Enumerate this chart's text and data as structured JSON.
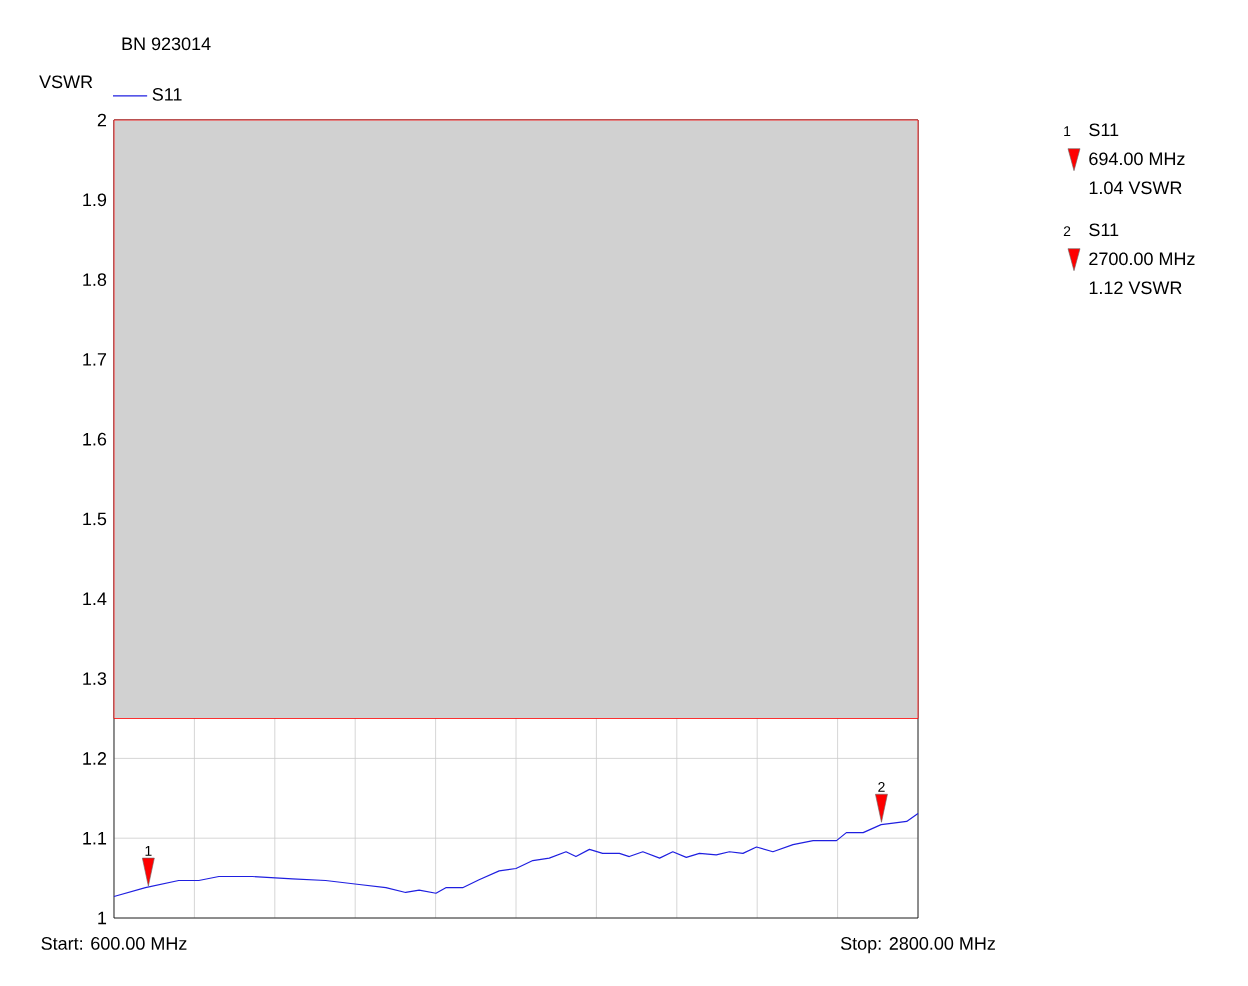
{
  "chart_data": {
    "type": "line",
    "title": "BN 923014",
    "ylabel": "VSWR",
    "x": [
      600,
      686,
      777,
      832,
      887,
      978,
      1088,
      1179,
      1271,
      1344,
      1398,
      1435,
      1481,
      1508,
      1554,
      1599,
      1654,
      1700,
      1746,
      1791,
      1837,
      1864,
      1901,
      1937,
      1983,
      2010,
      2047,
      2093,
      2129,
      2166,
      2202,
      2248,
      2284,
      2321,
      2358,
      2403,
      2458,
      2513,
      2577,
      2604,
      2650,
      2699,
      2732,
      2769,
      2800
    ],
    "series": [
      {
        "name": "S11",
        "color": "#1f1fe0",
        "values": [
          1.027,
          1.038,
          1.047,
          1.047,
          1.052,
          1.052,
          1.049,
          1.047,
          1.042,
          1.038,
          1.032,
          1.035,
          1.031,
          1.038,
          1.038,
          1.048,
          1.059,
          1.062,
          1.072,
          1.075,
          1.083,
          1.077,
          1.086,
          1.081,
          1.081,
          1.077,
          1.083,
          1.075,
          1.083,
          1.076,
          1.081,
          1.079,
          1.083,
          1.081,
          1.089,
          1.083,
          1.092,
          1.097,
          1.097,
          1.107,
          1.107,
          1.117,
          1.119,
          1.121,
          1.131
        ]
      }
    ],
    "xlim": [
      600,
      2800
    ],
    "ylim": [
      1,
      2
    ],
    "xticks": [
      {
        "value": 600,
        "label": "Start: 600.00 MHz"
      },
      {
        "value": 820,
        "label": null
      },
      {
        "value": 1040,
        "label": null
      },
      {
        "value": 1260,
        "label": null
      },
      {
        "value": 1480,
        "label": null
      },
      {
        "value": 1700,
        "label": null
      },
      {
        "value": 1920,
        "label": null
      },
      {
        "value": 2140,
        "label": null
      },
      {
        "value": 2360,
        "label": null
      },
      {
        "value": 2580,
        "label": null
      },
      {
        "value": 2800,
        "label": "Stop: 2800.00 MHz"
      }
    ],
    "yticks": [
      1,
      1.1,
      1.2,
      1.3,
      1.4,
      1.5,
      1.6,
      1.7,
      1.8,
      1.9,
      2
    ],
    "bands": [
      {
        "axis": "y",
        "from": 1.25,
        "to": 2,
        "color": "#ff0000"
      }
    ],
    "annotations": [
      {
        "text": "1",
        "x": 694,
        "y": 1.04
      },
      {
        "text": "2",
        "x": 2700,
        "y": 1.12
      },
      "S11",
      "694.00 MHz",
      "1.04 VSWR",
      "S11",
      "2700.00 MHz",
      "1.12 VSWR"
    ],
    "grid": true,
    "legend": "top left",
    "marker": "none",
    "line_style": "solid"
  }
}
